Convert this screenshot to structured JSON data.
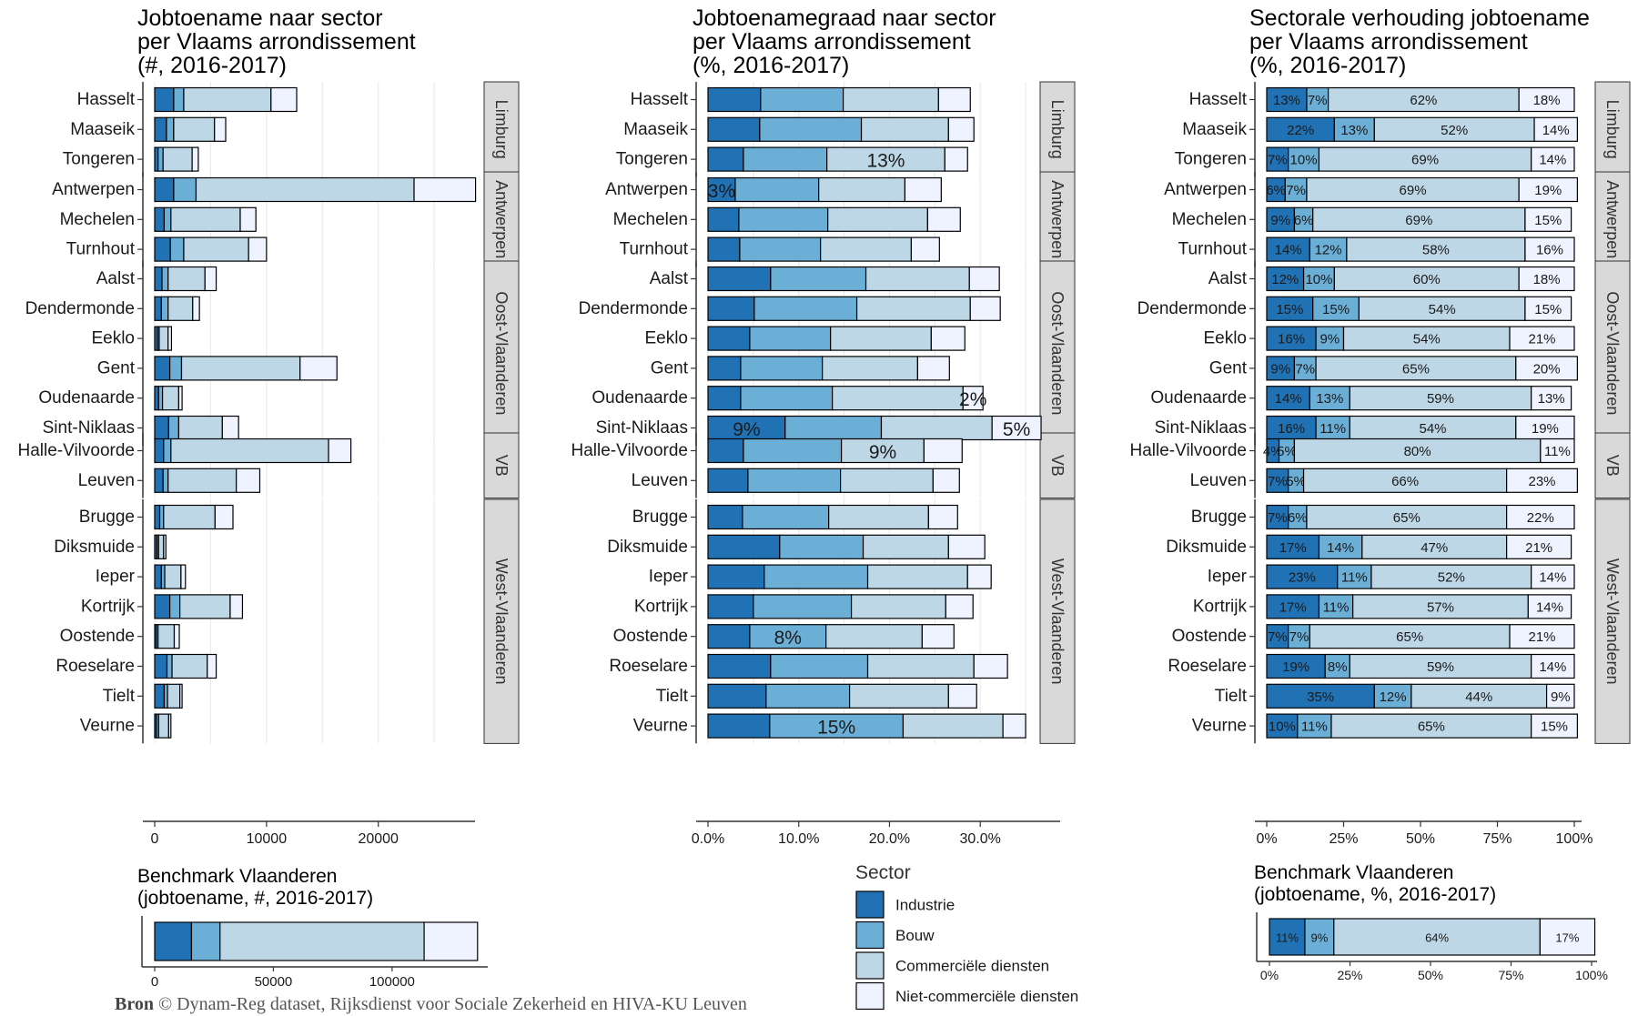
{
  "source": {
    "bold": "Bron",
    "text": " © Dynam-Reg dataset, Rijksdienst voor Sociale Zekerheid en HIVA-KU Leuven"
  },
  "colors": {
    "industrie": "#2171b5",
    "bouw": "#6baed6",
    "commercieel": "#bdd7e7",
    "niet_commercieel": "#eff3ff"
  },
  "legend": {
    "title": "Sector",
    "items": [
      "Industrie",
      "Bouw",
      "Commerciële diensten",
      "Niet-commerciële diensten"
    ]
  },
  "provinces": [
    {
      "name": "Limburg",
      "arr": [
        "Hasselt",
        "Maaseik",
        "Tongeren"
      ]
    },
    {
      "name": "Antwerpen",
      "arr": [
        "Antwerpen",
        "Mechelen",
        "Turnhout"
      ]
    },
    {
      "name": "Oost-Vlaanderen",
      "arr": [
        "Aalst",
        "Dendermonde",
        "Eeklo",
        "Gent",
        "Oudenaarde",
        "Sint-Niklaas"
      ]
    },
    {
      "name": "VB",
      "arr": [
        "Halle-Vilvoorde",
        "Leuven"
      ]
    },
    {
      "name": "West-Vlaanderen",
      "arr": [
        "Brugge",
        "Diksmuide",
        "Ieper",
        "Kortrijk",
        "Oostende",
        "Roeselare",
        "Tielt",
        "Veurne"
      ]
    }
  ],
  "chart_data": [
    {
      "type": "bar",
      "title": [
        "Jobtoename naar sector",
        "per Vlaams arrondissement",
        "(#, 2016-2017)"
      ],
      "orientation": "horizontal",
      "stacked": true,
      "categories": [
        "Hasselt",
        "Maaseik",
        "Tongeren",
        "Antwerpen",
        "Mechelen",
        "Turnhout",
        "Aalst",
        "Dendermonde",
        "Eeklo",
        "Gent",
        "Oudenaarde",
        "Sint-Niklaas",
        "Halle-Vilvoorde",
        "Leuven",
        "Brugge",
        "Diksmuide",
        "Ieper",
        "Kortrijk",
        "Oostende",
        "Roeselare",
        "Tielt",
        "Veurne"
      ],
      "series": [
        {
          "name": "Industrie",
          "values": [
            1700,
            1050,
            300,
            1700,
            850,
            1400,
            650,
            600,
            250,
            1350,
            350,
            1250,
            800,
            750,
            450,
            200,
            600,
            1350,
            150,
            1100,
            850,
            150
          ]
        },
        {
          "name": "Bouw",
          "values": [
            900,
            650,
            450,
            2000,
            600,
            1200,
            550,
            600,
            150,
            1050,
            350,
            900,
            650,
            450,
            350,
            150,
            300,
            900,
            150,
            450,
            300,
            200
          ]
        },
        {
          "name": "Commerciële diensten",
          "values": [
            7800,
            3650,
            2600,
            19500,
            6200,
            5800,
            3300,
            2200,
            800,
            10600,
            1450,
            3900,
            14100,
            6100,
            4600,
            450,
            1450,
            4500,
            1450,
            3150,
            1100,
            900
          ]
        },
        {
          "name": "Niet-commerciële diensten",
          "values": [
            2300,
            1000,
            550,
            5500,
            1400,
            1600,
            1000,
            600,
            300,
            3300,
            300,
            1450,
            2000,
            2100,
            1600,
            200,
            400,
            1100,
            450,
            800,
            200,
            200
          ]
        }
      ],
      "xlim": [
        0,
        28000
      ],
      "xticks": [
        0,
        10000,
        20000
      ],
      "xticklabels": [
        "0",
        "10000",
        "20000"
      ],
      "grid": true
    },
    {
      "type": "bar",
      "title": [
        "Jobtoenamegraad naar sector",
        "per Vlaams arrondissement",
        "(%, 2016-2017)"
      ],
      "orientation": "horizontal",
      "stacked": true,
      "categories": [
        "Hasselt",
        "Maaseik",
        "Tongeren",
        "Antwerpen",
        "Mechelen",
        "Turnhout",
        "Aalst",
        "Dendermonde",
        "Eeklo",
        "Gent",
        "Oudenaarde",
        "Sint-Niklaas",
        "Halle-Vilvoorde",
        "Leuven",
        "Brugge",
        "Diksmuide",
        "Ieper",
        "Kortrijk",
        "Oostende",
        "Roeselare",
        "Tielt",
        "Veurne"
      ],
      "series": [
        {
          "name": "Industrie",
          "values": [
            5.8,
            5.7,
            3.9,
            3.0,
            3.4,
            3.5,
            6.9,
            5.1,
            4.6,
            3.6,
            3.6,
            8.5,
            3.9,
            4.4,
            3.8,
            7.9,
            6.2,
            5.0,
            4.6,
            6.9,
            6.4,
            6.8
          ]
        },
        {
          "name": "Bouw",
          "values": [
            9.1,
            11.2,
            9.2,
            9.2,
            9.8,
            8.9,
            10.5,
            11.3,
            8.9,
            9.0,
            10.1,
            10.6,
            10.8,
            10.2,
            9.5,
            9.2,
            11.4,
            10.8,
            8.4,
            10.7,
            9.2,
            14.7
          ]
        },
        {
          "name": "Commerciële diensten",
          "values": [
            10.5,
            9.6,
            13.0,
            9.5,
            11.0,
            10.0,
            11.4,
            12.5,
            11.1,
            10.5,
            14.4,
            12.2,
            9.1,
            10.2,
            11.0,
            9.4,
            11.0,
            10.4,
            10.6,
            11.7,
            10.9,
            11.0
          ]
        },
        {
          "name": "Niet-commerciële diensten",
          "values": [
            3.5,
            2.8,
            2.5,
            4.0,
            3.6,
            3.1,
            3.3,
            3.3,
            3.7,
            3.5,
            2.2,
            5.4,
            4.2,
            2.9,
            3.2,
            4.0,
            2.6,
            3.0,
            3.5,
            3.7,
            3.1,
            2.5
          ]
        }
      ],
      "labels": [
        {
          "row": "Tongeren",
          "series": "Commerciële diensten",
          "text": "13%"
        },
        {
          "row": "Antwerpen",
          "series": "Industrie",
          "text": "3%"
        },
        {
          "row": "Oudenaarde",
          "series": "Niet-commerciële diensten",
          "text": "2%"
        },
        {
          "row": "Sint-Niklaas",
          "series": "Industrie",
          "text": "9%"
        },
        {
          "row": "Sint-Niklaas",
          "series": "Niet-commerciële diensten",
          "text": "5%"
        },
        {
          "row": "Halle-Vilvoorde",
          "series": "Commerciële diensten",
          "text": "9%"
        },
        {
          "row": "Oostende",
          "series": "Bouw",
          "text": "8%"
        },
        {
          "row": "Veurne",
          "series": "Bouw",
          "text": "15%"
        }
      ],
      "xlim": [
        0,
        38
      ],
      "xticks": [
        0,
        10,
        20,
        30
      ],
      "xticklabels": [
        "0.0%",
        "10.0%",
        "20.0%",
        "30.0%"
      ],
      "grid": true
    },
    {
      "type": "bar",
      "title": [
        "Sectorale verhouding jobtoename",
        "per Vlaams arrondissement",
        "(%, 2016-2017)"
      ],
      "orientation": "horizontal",
      "stacked": true,
      "percent": true,
      "categories": [
        "Hasselt",
        "Maaseik",
        "Tongeren",
        "Antwerpen",
        "Mechelen",
        "Turnhout",
        "Aalst",
        "Dendermonde",
        "Eeklo",
        "Gent",
        "Oudenaarde",
        "Sint-Niklaas",
        "Halle-Vilvoorde",
        "Leuven",
        "Brugge",
        "Diksmuide",
        "Ieper",
        "Kortrijk",
        "Oostende",
        "Roeselare",
        "Tielt",
        "Veurne"
      ],
      "series": [
        {
          "name": "Industrie",
          "values": [
            13,
            22,
            7,
            6,
            9,
            14,
            12,
            15,
            16,
            9,
            14,
            16,
            4,
            7,
            7,
            17,
            23,
            17,
            7,
            19,
            35,
            10
          ]
        },
        {
          "name": "Bouw",
          "values": [
            7,
            13,
            10,
            7,
            6,
            12,
            10,
            15,
            9,
            7,
            13,
            11,
            5,
            5,
            6,
            14,
            11,
            11,
            7,
            8,
            12,
            11
          ]
        },
        {
          "name": "Commerciële diensten",
          "values": [
            62,
            52,
            69,
            69,
            69,
            58,
            60,
            54,
            54,
            65,
            59,
            54,
            80,
            66,
            65,
            47,
            52,
            57,
            65,
            59,
            44,
            65
          ]
        },
        {
          "name": "Niet-commerciële diensten",
          "values": [
            18,
            14,
            14,
            19,
            15,
            16,
            18,
            15,
            21,
            20,
            13,
            19,
            11,
            23,
            22,
            21,
            14,
            14,
            21,
            14,
            9,
            15
          ]
        }
      ],
      "xlim": [
        0,
        100
      ],
      "xticks": [
        0,
        25,
        50,
        75,
        100
      ],
      "xticklabels": [
        "0%",
        "25%",
        "50%",
        "75%",
        "100%"
      ],
      "grid": false
    },
    {
      "type": "bar",
      "title": [
        "Benchmark Vlaanderen",
        "(jobtoename, #, 2016-2017)"
      ],
      "orientation": "horizontal",
      "stacked": true,
      "categories": [
        "Vlaanderen"
      ],
      "series": [
        {
          "name": "Industrie",
          "values": [
            15500
          ]
        },
        {
          "name": "Bouw",
          "values": [
            12000
          ]
        },
        {
          "name": "Commerciële diensten",
          "values": [
            86000
          ]
        },
        {
          "name": "Niet-commerciële diensten",
          "values": [
            22500
          ]
        }
      ],
      "xlim": [
        0,
        138000
      ],
      "xticks": [
        0,
        50000,
        100000
      ],
      "xticklabels": [
        "0",
        "50000",
        "100000"
      ]
    },
    {
      "type": "bar",
      "title": [
        "Benchmark Vlaanderen",
        "(jobtoename, %, 2016-2017)"
      ],
      "orientation": "horizontal",
      "stacked": true,
      "percent": true,
      "categories": [
        "Vlaanderen"
      ],
      "series": [
        {
          "name": "Industrie",
          "values": [
            11
          ]
        },
        {
          "name": "Bouw",
          "values": [
            9
          ]
        },
        {
          "name": "Commerciële diensten",
          "values": [
            64
          ]
        },
        {
          "name": "Niet-commerciële diensten",
          "values": [
            17
          ]
        }
      ],
      "xlim": [
        0,
        100
      ],
      "xticks": [
        0,
        25,
        50,
        75,
        100
      ],
      "xticklabels": [
        "0%",
        "25%",
        "50%",
        "75%",
        "100%"
      ]
    }
  ]
}
